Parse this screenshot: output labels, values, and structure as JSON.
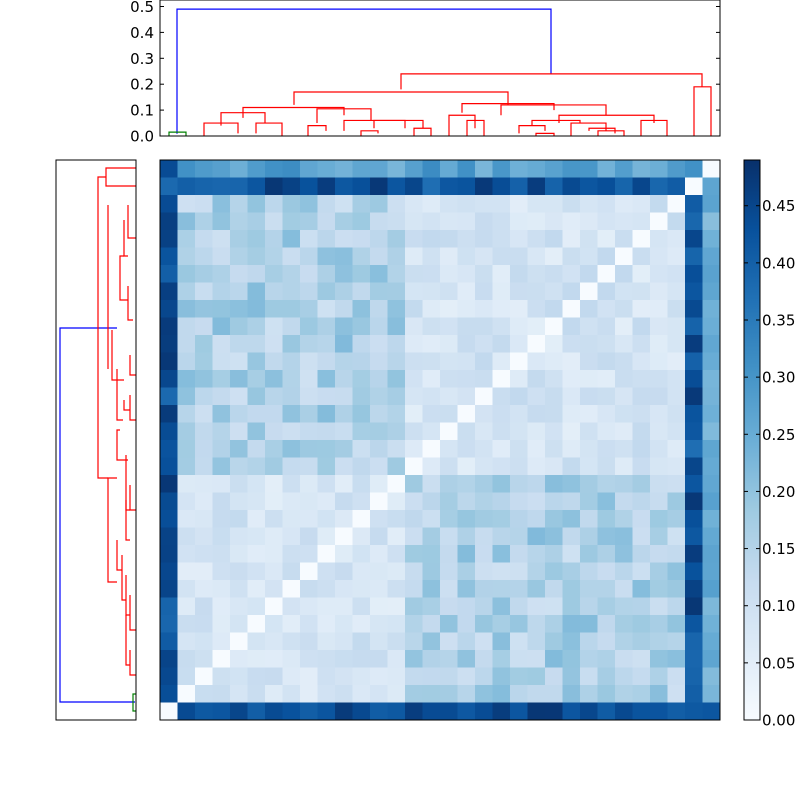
{
  "chart_data": [
    {
      "type": "dendrogram",
      "orientation": "top",
      "ylim": [
        0.0,
        0.5
      ],
      "yticks": [
        "0.0",
        "0.1",
        "0.2",
        "0.3",
        "0.4",
        "0.5"
      ],
      "colors": {
        "root": "#0000ff",
        "main_cluster": "#ff0000",
        "small_cluster": "#008000"
      },
      "merge_heights": {
        "root": 0.49,
        "main_cluster": 0.24,
        "small_cluster": 0.015
      }
    },
    {
      "type": "dendrogram",
      "orientation": "left",
      "colors": {
        "root": "#0000ff",
        "main_cluster": "#ff0000",
        "small_cluster": "#008000"
      }
    },
    {
      "type": "heatmap",
      "rows": 32,
      "cols": 32,
      "colormap": "Blues",
      "zlim": [
        0.0,
        0.49
      ],
      "colorbar_ticks": [
        "0.00",
        "0.05",
        "0.10",
        "0.15",
        "0.20",
        "0.25",
        "0.30",
        "0.35",
        "0.40",
        "0.45"
      ],
      "colorbar_values": [
        0.0,
        0.05,
        0.1,
        0.15,
        0.2,
        0.25,
        0.3,
        0.35,
        0.4,
        0.45
      ],
      "structure": "symmetric distance matrix; diagonal 0.0; main block values 0.03-0.25; last two items distant from others (about 0.36-0.49)"
    }
  ]
}
